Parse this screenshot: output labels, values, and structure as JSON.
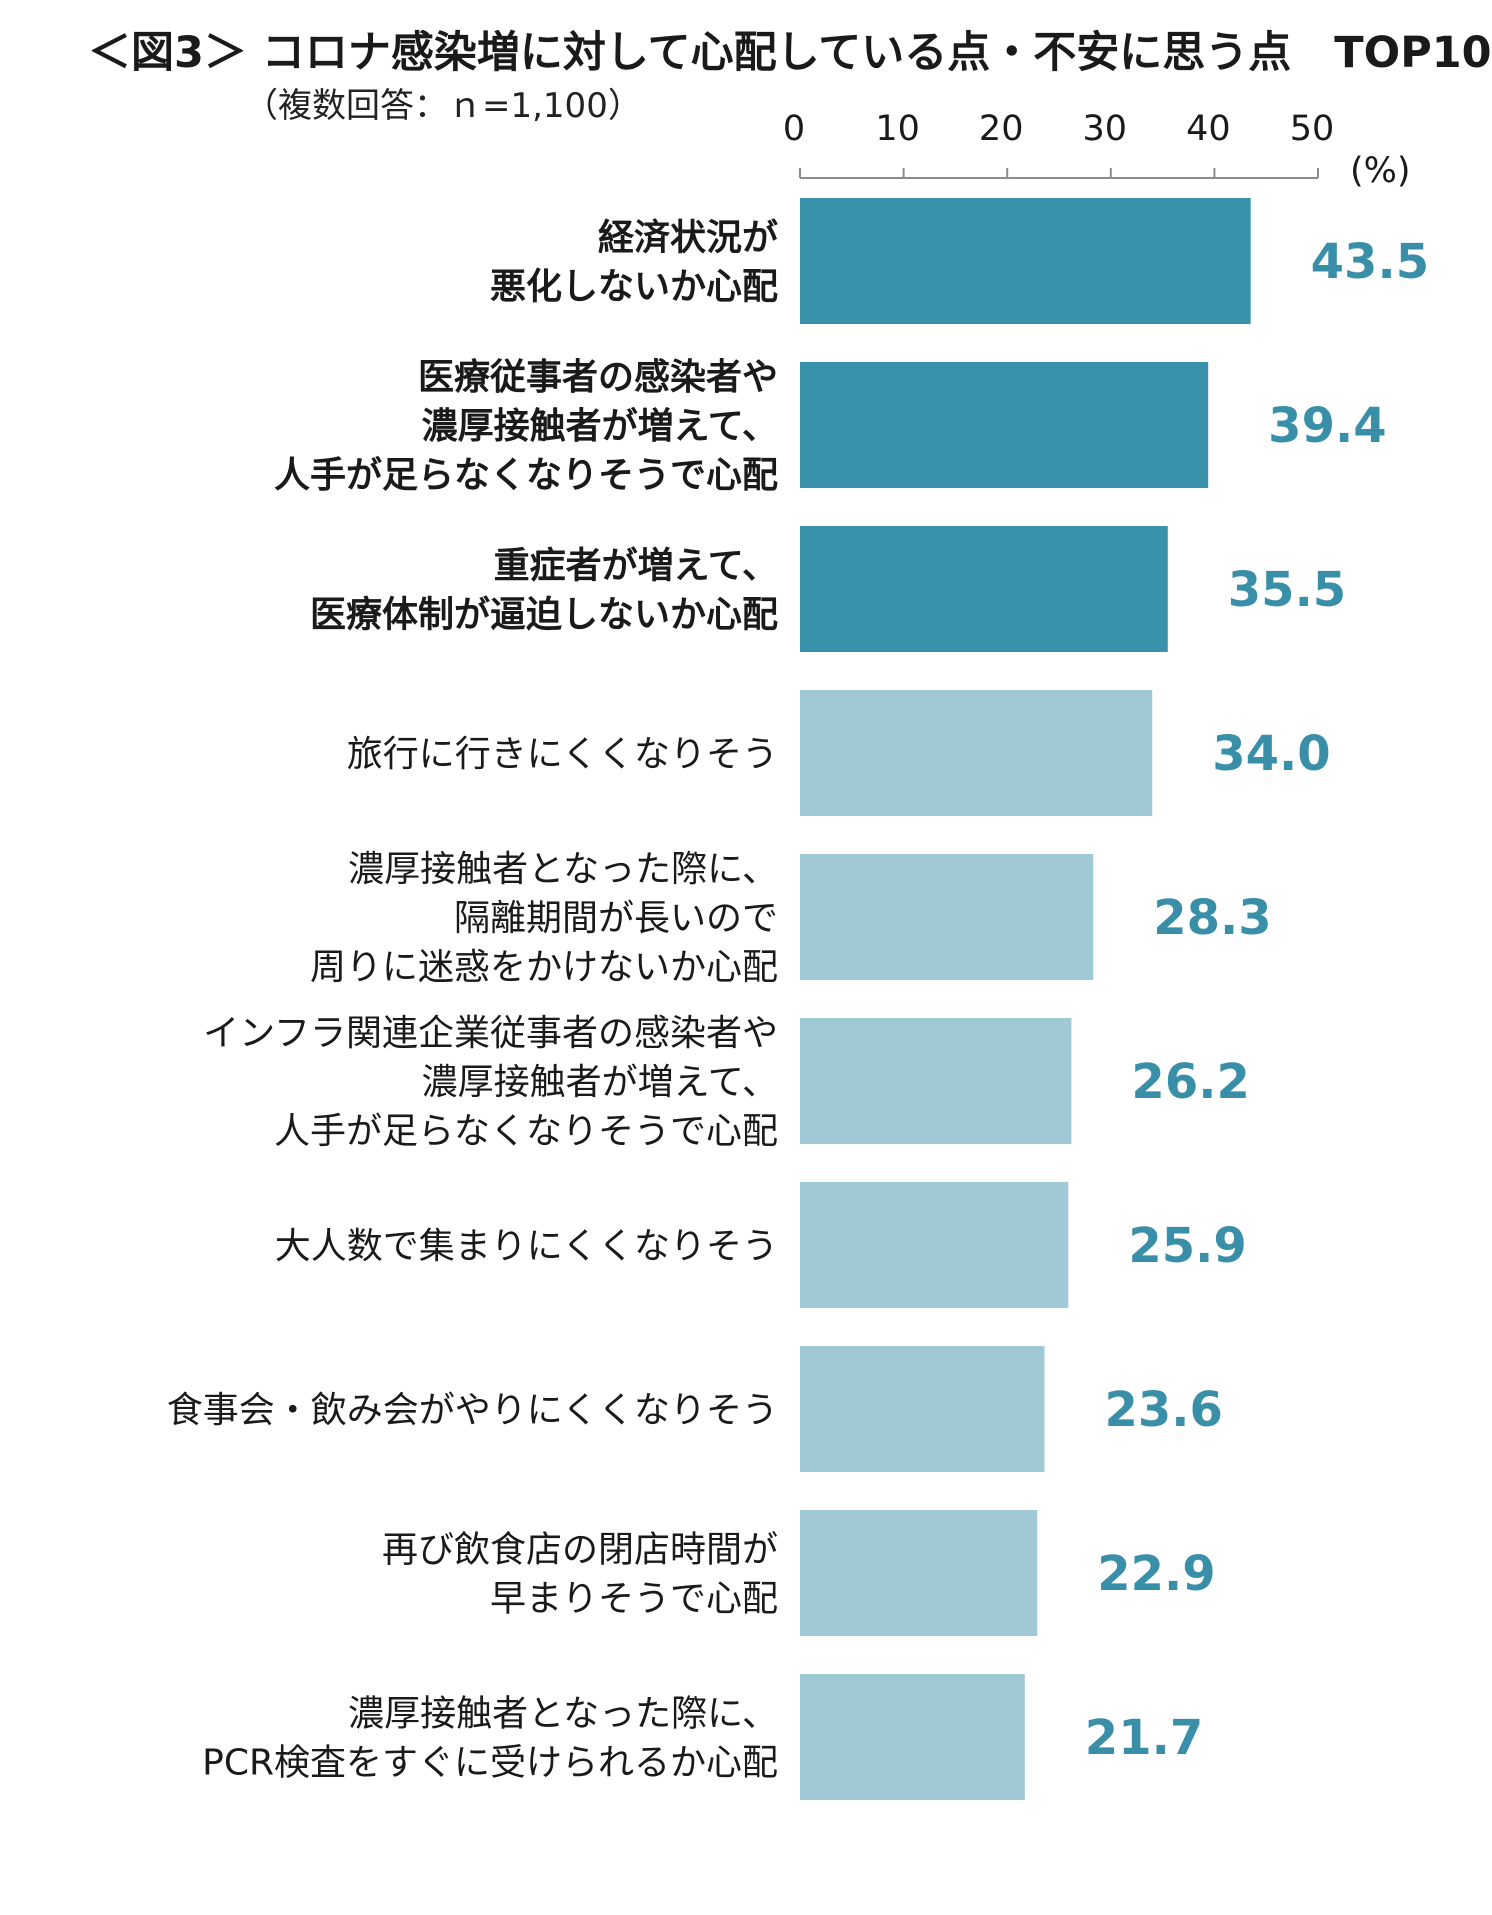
{
  "title": "＜図3＞ コロナ感染増に対して心配している点・不安に思う点　TOP10",
  "subtitle": "（複数回答：ｎ=1,100）",
  "colors": {
    "highlight": "#3a92aa",
    "normal": "#a0c8d5",
    "value_text": "#3a8fa8",
    "axis": "#8c8c8c"
  },
  "chart_data": {
    "type": "bar",
    "orientation": "horizontal",
    "unit": "(%)",
    "xlim": [
      0,
      50
    ],
    "ticks": [
      "0",
      "10",
      "20",
      "30",
      "40",
      "50"
    ],
    "tick_values": [
      0,
      10,
      20,
      30,
      40,
      50
    ],
    "categories": [
      [
        "経済状況が",
        "悪化しないか心配"
      ],
      [
        "医療従事者の感染者や",
        "濃厚接触者が増えて、",
        "人手が足らなくなりそうで心配"
      ],
      [
        "重症者が増えて、",
        "医療体制が逼迫しないか心配"
      ],
      [
        "旅行に行きにくくなりそう"
      ],
      [
        "濃厚接触者となった際に、",
        "隔離期間が長いので",
        "周りに迷惑をかけないか心配"
      ],
      [
        "インフラ関連企業従事者の感染者や",
        "濃厚接触者が増えて、",
        "人手が足らなくなりそうで心配"
      ],
      [
        "大人数で集まりにくくなりそう"
      ],
      [
        "食事会・飲み会がやりにくくなりそう"
      ],
      [
        "再び飲食店の閉店時間が",
        "早まりそうで心配"
      ],
      [
        "濃厚接触者となった際に、",
        "PCR検査をすぐに受けられるか心配"
      ]
    ],
    "values": [
      43.5,
      39.4,
      35.5,
      34.0,
      28.3,
      26.2,
      25.9,
      23.6,
      22.9,
      21.7
    ],
    "value_labels": [
      "43.5",
      "39.4",
      "35.5",
      "34.0",
      "28.3",
      "26.2",
      "25.9",
      "23.6",
      "22.9",
      "21.7"
    ],
    "highlighted": [
      true,
      true,
      true,
      false,
      false,
      false,
      false,
      false,
      false,
      false
    ]
  }
}
